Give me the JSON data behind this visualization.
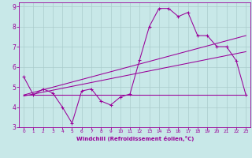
{
  "xlabel": "Windchill (Refroidissement éolien,°C)",
  "background_color": "#c8e8e8",
  "grid_color": "#aacccc",
  "line_color": "#990099",
  "xlim": [
    -0.5,
    23.5
  ],
  "ylim": [
    3,
    9.2
  ],
  "xticks": [
    0,
    1,
    2,
    3,
    4,
    5,
    6,
    7,
    8,
    9,
    10,
    11,
    12,
    13,
    14,
    15,
    16,
    17,
    18,
    19,
    20,
    21,
    22,
    23
  ],
  "yticks": [
    3,
    4,
    5,
    6,
    7,
    8,
    9
  ],
  "line1_x": [
    0,
    1,
    2,
    3,
    4,
    5,
    6,
    7,
    8,
    9,
    10,
    11,
    12,
    13,
    14,
    15,
    16,
    17,
    18,
    19,
    20,
    21,
    22,
    23
  ],
  "line1_y": [
    5.5,
    4.6,
    4.9,
    4.7,
    4.0,
    3.2,
    4.8,
    4.9,
    4.3,
    4.1,
    4.5,
    4.65,
    6.35,
    8.0,
    8.9,
    8.9,
    8.5,
    8.7,
    7.55,
    7.55,
    7.0,
    7.0,
    6.3,
    4.6
  ],
  "line2_x": [
    0,
    23
  ],
  "line2_y": [
    4.6,
    4.6
  ],
  "line3_x": [
    0,
    23
  ],
  "line3_y": [
    4.6,
    7.55
  ],
  "line4_x": [
    0,
    23
  ],
  "line4_y": [
    4.55,
    6.75
  ]
}
